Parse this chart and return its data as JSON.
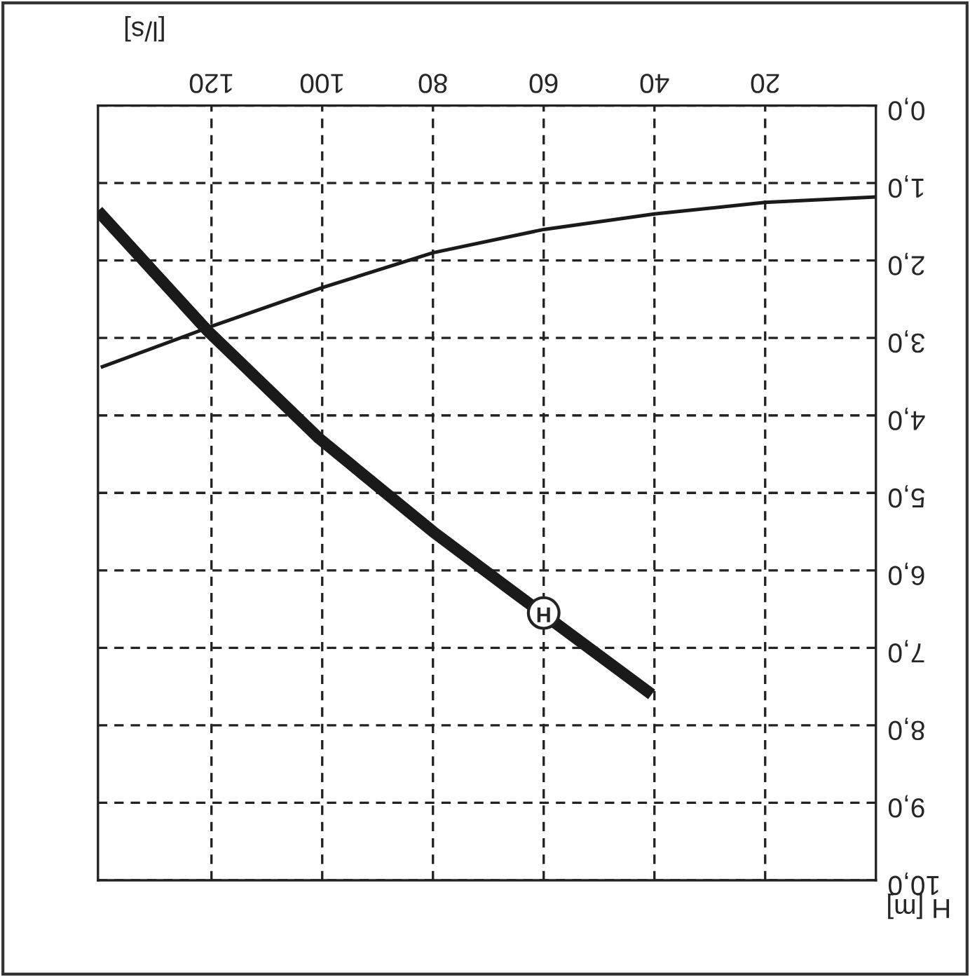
{
  "chart_data": {
    "type": "line",
    "xlabel": "[l/s]",
    "ylabel": "H [m]",
    "series": [
      {
        "color": "#1a1a1a",
        "x": [
          40.5,
          66,
          80,
          100.5,
          120.8,
          140.5
        ],
        "values": [
          7.6,
          6.25,
          5.5,
          4.3,
          2.9,
          1.36
        ]
      },
      {
        "color": "#1a1a1a",
        "x": [
          0,
          20,
          40,
          60,
          80,
          100,
          120,
          140
        ],
        "values": [
          1.18,
          1.25,
          1.4,
          1.6,
          1.9,
          2.35,
          2.85,
          3.38
        ]
      }
    ],
    "xlim": [
      140.5,
      0
    ],
    "ylim": [
      10,
      0
    ],
    "xticks": [
      20,
      40,
      60,
      80,
      100,
      120
    ],
    "yticks": [
      {
        "value": 0,
        "label": "0,0"
      },
      {
        "value": 1,
        "label": "1,0"
      },
      {
        "value": 2,
        "label": "2,0"
      },
      {
        "value": 3,
        "label": "3,0"
      },
      {
        "value": 4,
        "label": "4,0"
      },
      {
        "value": 5,
        "label": "5,0"
      },
      {
        "value": 6,
        "label": "6,0"
      },
      {
        "value": 7,
        "label": "7,0"
      },
      {
        "value": 8,
        "label": "8,0"
      },
      {
        "value": 9,
        "label": "9,0"
      },
      {
        "value": 10,
        "label": "10,0"
      }
    ],
    "annotations": [
      {
        "text": "H",
        "x": 60,
        "y": 6.55
      }
    ],
    "grid": true,
    "line_style": "solid"
  }
}
